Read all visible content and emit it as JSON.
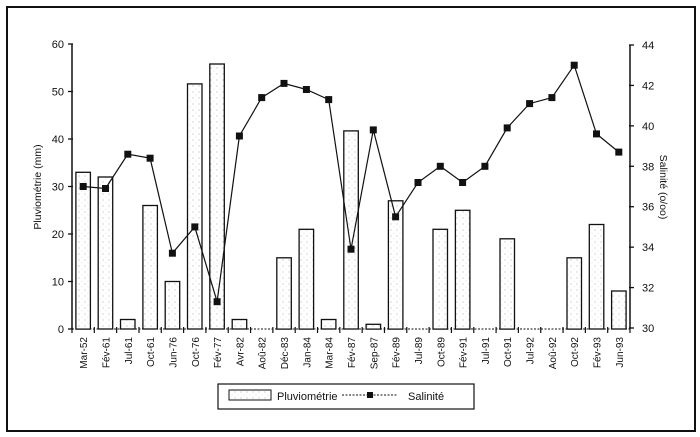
{
  "chart_data": {
    "type": "bar+line",
    "title": "",
    "categories": [
      "Mar-52",
      "Fév-61",
      "Jul-61",
      "Oct-61",
      "Jun-76",
      "Oct-76",
      "Fév-77",
      "Avr-82",
      "Aoû-82",
      "Déc-83",
      "Jan-84",
      "Mar-84",
      "Fév-87",
      "Sep-87",
      "Fév-89",
      "Jul-89",
      "Oct-89",
      "Fév-91",
      "Jul-91",
      "Oct-91",
      "Jul-92",
      "Aoû-92",
      "Oct-92",
      "Fév-93",
      "Jun-93"
    ],
    "series": [
      {
        "name": "Pluviométrie",
        "type": "bar",
        "axis": "left",
        "values": [
          33,
          32,
          2,
          26,
          10,
          51.6,
          55.8,
          2,
          0,
          15,
          21,
          2,
          41.7,
          1,
          27,
          0,
          21,
          25,
          0,
          19,
          0,
          0,
          15,
          22,
          8
        ]
      },
      {
        "name": "Salinité",
        "type": "line",
        "axis": "right",
        "values": [
          37.0,
          36.9,
          38.6,
          38.4,
          33.7,
          35.0,
          31.3,
          39.5,
          41.4,
          42.1,
          41.8,
          41.3,
          33.9,
          39.8,
          35.5,
          37.2,
          38.0,
          37.2,
          38.0,
          39.9,
          41.1,
          41.4,
          43.0,
          39.6,
          38.7
        ]
      }
    ],
    "xlabel": "",
    "ylabel": "Pluviométrie (mm)",
    "y2label": "Salinité (o/oo)",
    "ylim": [
      0,
      60
    ],
    "y2lim": [
      30,
      44
    ],
    "yticks": [
      0,
      10,
      20,
      30,
      40,
      50,
      60
    ],
    "y2ticks": [
      30,
      32,
      34,
      36,
      38,
      40,
      42,
      44
    ],
    "grid": false,
    "legend": {
      "position": "bottom",
      "entries": [
        "Pluviométrie",
        "Salinité"
      ]
    }
  }
}
